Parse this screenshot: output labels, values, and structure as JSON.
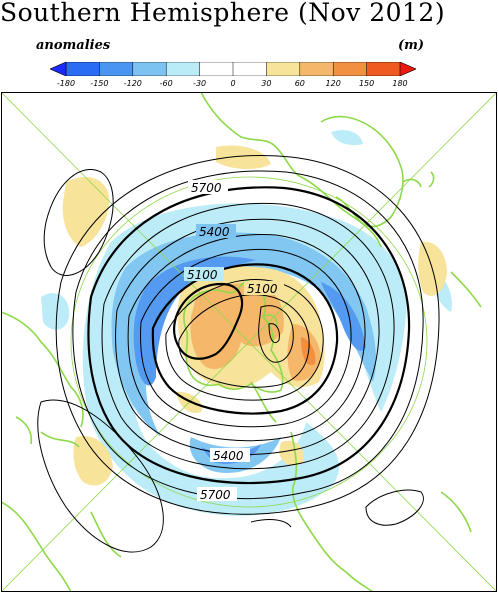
{
  "title": "Southern Hemisphere (Nov 2012)",
  "legend": {
    "left_label": "anomalies",
    "unit_label": "(m)",
    "ticks": [
      "-180",
      "-150",
      "-120",
      "-60",
      "-30",
      "0",
      "30",
      "60",
      "120",
      "150",
      "180"
    ],
    "colors": [
      "#1a2cff",
      "#2b6cf5",
      "#4a95f0",
      "#7cc3f2",
      "#b9ecf7",
      "#ffffff",
      "#ffffff",
      "#f7e39a",
      "#f5b86a",
      "#f29042",
      "#ee5a1f",
      "#e81a10"
    ]
  },
  "map": {
    "contour_labels": [
      "5700",
      "5400",
      "5100",
      "5100",
      "5400",
      "5700"
    ],
    "coast_color": "#8ed94a",
    "contour_color": "#000000"
  }
}
